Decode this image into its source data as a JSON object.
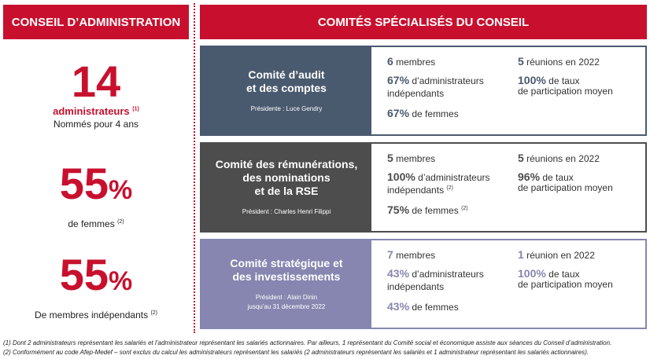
{
  "left_header": "CONSEIL D’ADMINISTRATION",
  "right_header": "COMITÉS SPÉCIALISÉS DU CONSEIL",
  "stats": [
    {
      "value": "14",
      "label": "administrateurs",
      "note": "(1)",
      "sub": "Nommés pour 4 ans"
    },
    {
      "value": "55",
      "unit": "%",
      "label": "de femmes",
      "note": "(2)"
    },
    {
      "value": "55",
      "unit": "%",
      "label": "De membres indépendants",
      "note": "(2)"
    }
  ],
  "committees": [
    {
      "name_line1": "Comité d’audit",
      "name_line2": "et des comptes",
      "name_line3": "",
      "president_line1": "Présidente : Luce Gendry",
      "president_line2": "",
      "color": "#4a5a6e",
      "members_value": "6",
      "members_text": "membres",
      "indep_value": "67%",
      "indep_text1": "d’administrateurs",
      "indep_text2": "indépendants",
      "indep_note": "",
      "women_value": "67%",
      "women_text": "de femmes",
      "women_note": "",
      "meetings_value": "5",
      "meetings_text": "réunions en 2022",
      "rate_value": "100%",
      "rate_text1": "de taux",
      "rate_text2": "de participation moyen",
      "text_color": "#4a5a6e"
    },
    {
      "name_line1": "Comité des rémunérations,",
      "name_line2": "des nominations",
      "name_line3": "et de la RSE",
      "president_line1": "Président : Charles Henri Filippi",
      "president_line2": "",
      "color": "#4d4d4d",
      "members_value": "5",
      "members_text": "membres",
      "indep_value": "100%",
      "indep_text1": "d’administrateurs",
      "indep_text2": "indépendants",
      "indep_note": "(2)",
      "women_value": "75%",
      "women_text": "de femmes",
      "women_note": "(2)",
      "meetings_value": "5",
      "meetings_text": "réunions en 2022",
      "rate_value": "96%",
      "rate_text1": "de taux",
      "rate_text2": "de participation moyen",
      "text_color": "#4d4d4d"
    },
    {
      "name_line1": "Comité stratégique et",
      "name_line2": "des investissements",
      "name_line3": "",
      "president_line1": "Président : Alain Dinin",
      "president_line2": "jusqu’au 31 décembre 2022",
      "color": "#8686b0",
      "members_value": "7",
      "members_text": "membres",
      "indep_value": "43%",
      "indep_text1": "d’administrateurs",
      "indep_text2": "indépendants",
      "indep_note": "",
      "women_value": "43%",
      "women_text": "de femmes",
      "women_note": "",
      "meetings_value": "1",
      "meetings_text": "réunion en 2022",
      "rate_value": "100%",
      "rate_text1": "de taux",
      "rate_text2": "de participation moyen",
      "text_color": "#8686b0"
    }
  ],
  "footnotes": [
    "(1) Dont 2 administrateurs représentant les salariés et l’administrateur représentant les salariés actionnaires. Par ailleurs, 1 représentant du Comité social et économique assiste aux séances du Conseil d’administration.",
    "(2) Conformément au code Afep-Medef – sont exclus du calcul les administrateurs représentant les salariés (2 administrateurs représentant les salariés et 1 administrateur représentant les salariés actionnaires)."
  ]
}
